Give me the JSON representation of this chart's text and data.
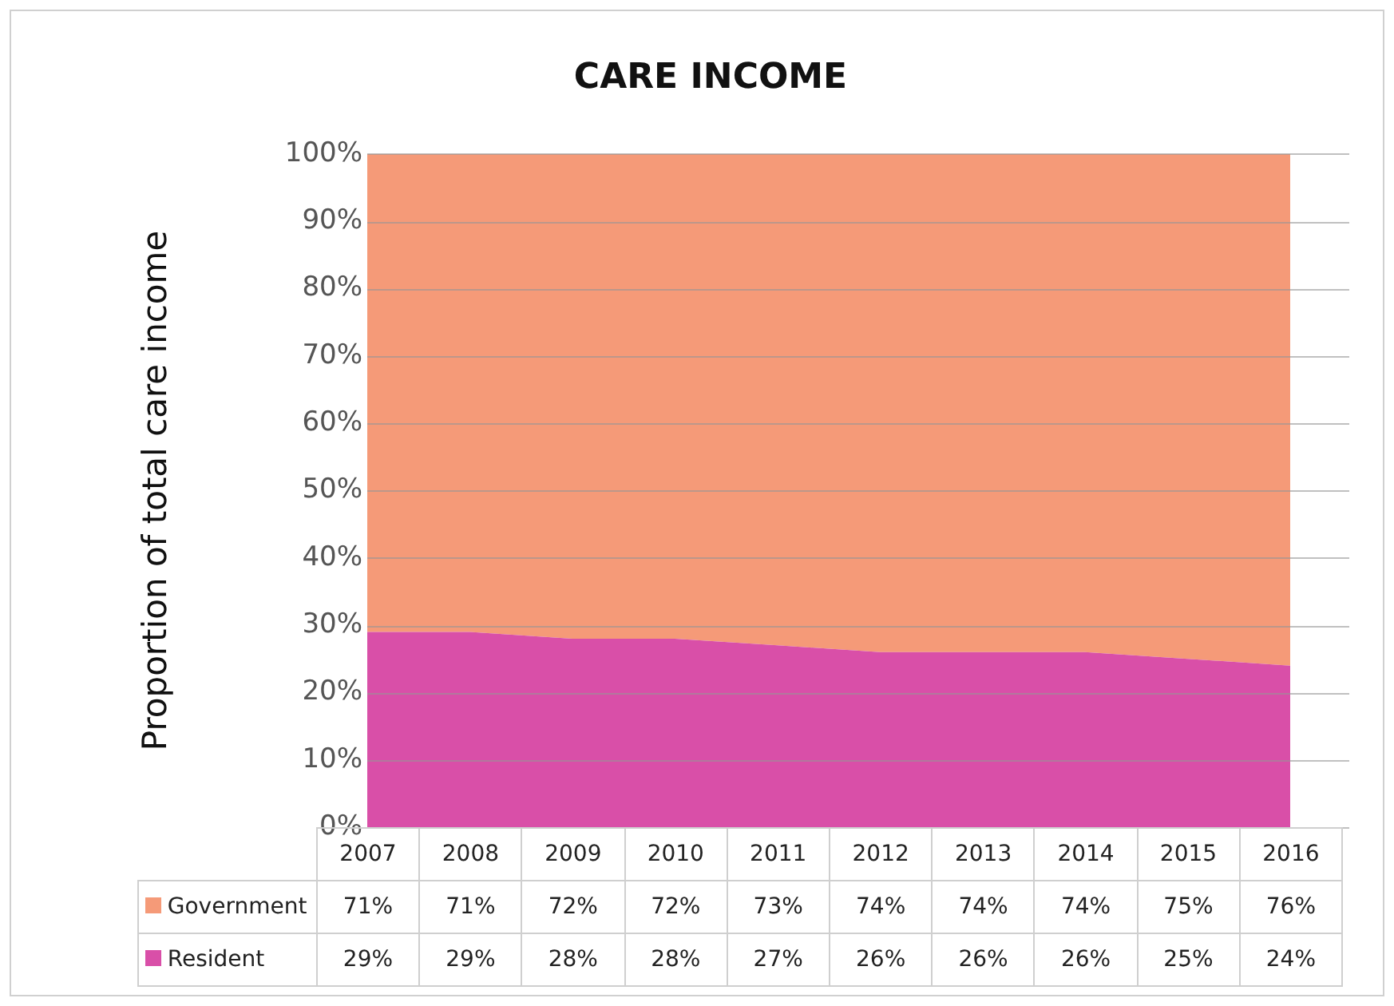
{
  "chart_data": {
    "type": "area",
    "title": "CARE INCOME",
    "ylabel": "Proportion of total care income",
    "categories": [
      "2007",
      "2008",
      "2009",
      "2010",
      "2011",
      "2012",
      "2013",
      "2014",
      "2015",
      "2016"
    ],
    "stacked": true,
    "series": [
      {
        "name": "Resident",
        "color": "#d94fa8",
        "values": [
          29,
          29,
          28,
          28,
          27,
          26,
          26,
          26,
          25,
          24
        ],
        "value_labels": [
          "29%",
          "29%",
          "28%",
          "28%",
          "27%",
          "26%",
          "26%",
          "26%",
          "25%",
          "24%"
        ]
      },
      {
        "name": "Government",
        "color": "#f59a78",
        "values": [
          71,
          71,
          72,
          72,
          73,
          74,
          74,
          74,
          75,
          76
        ],
        "value_labels": [
          "71%",
          "71%",
          "72%",
          "72%",
          "73%",
          "74%",
          "74%",
          "74%",
          "75%",
          "76%"
        ]
      }
    ],
    "ylim": [
      0,
      100
    ],
    "yticks": [
      {
        "value": 0,
        "label": "0%"
      },
      {
        "value": 10,
        "label": "10%"
      },
      {
        "value": 20,
        "label": "20%"
      },
      {
        "value": 30,
        "label": "30%"
      },
      {
        "value": 40,
        "label": "40%"
      },
      {
        "value": 50,
        "label": "50%"
      },
      {
        "value": 60,
        "label": "60%"
      },
      {
        "value": 70,
        "label": "70%"
      },
      {
        "value": 80,
        "label": "80%"
      },
      {
        "value": 90,
        "label": "90%"
      },
      {
        "value": 100,
        "label": "100%"
      }
    ],
    "grid": "y",
    "legend": "bottom"
  }
}
